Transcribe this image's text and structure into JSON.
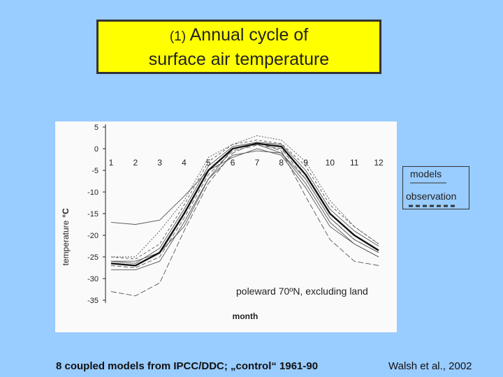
{
  "title": {
    "prefix": "(1)",
    "line1": "Annual cycle of",
    "line2": "surface air temperature"
  },
  "legend": {
    "models": "models",
    "observation": "observation"
  },
  "footer": {
    "left": "8 coupled models from IPCC/DDC; „control“ 1961-90",
    "right": "Walsh et al., 2002"
  },
  "chart_data": {
    "type": "line",
    "xlabel": "month",
    "ylabel": "temperature",
    "yunit": "°C",
    "annotation": "poleward 70ºN, excluding land",
    "x": [
      1,
      2,
      3,
      4,
      5,
      6,
      7,
      8,
      9,
      10,
      11,
      12
    ],
    "x_tick_labels": [
      "1",
      "2",
      "3",
      "4",
      "5",
      "6",
      "7",
      "8",
      "9",
      "10",
      "11",
      "12"
    ],
    "y_ticks": [
      5,
      0,
      -5,
      -10,
      -15,
      -20,
      -25,
      -30,
      -35
    ],
    "ylim": [
      -35,
      5
    ],
    "grid": false,
    "series": [
      {
        "kind": "observation",
        "values": [
          -26.5,
          -27,
          -24,
          -15,
          -5,
          0,
          1.2,
          0.5,
          -6,
          -15,
          -20,
          -23.5
        ]
      },
      {
        "kind": "model",
        "values": [
          -27,
          -27.5,
          -25,
          -16,
          -6,
          -0.5,
          0.8,
          0,
          -7,
          -16,
          -21,
          -24
        ]
      },
      {
        "kind": "model",
        "values": [
          -26,
          -26.5,
          -23,
          -14,
          -4,
          0.5,
          1.5,
          1,
          -5,
          -14,
          -19,
          -22.5
        ]
      },
      {
        "kind": "model",
        "values": [
          -25,
          -25.5,
          -22,
          -13,
          -3,
          1,
          2,
          1.2,
          -4,
          -13,
          -18,
          -22
        ]
      },
      {
        "kind": "model",
        "values": [
          -28,
          -28,
          -26,
          -17,
          -7,
          -1.5,
          -0.5,
          -1,
          -8,
          -17,
          -22,
          -25
        ]
      },
      {
        "kind": "model",
        "values": [
          -17,
          -17.5,
          -16.5,
          -11,
          -5,
          -2,
          0,
          -1.5,
          -9,
          -18,
          -22,
          -25
        ]
      },
      {
        "kind": "model",
        "values": [
          -25,
          -25,
          -19,
          -12,
          -2,
          1,
          3,
          2,
          -3,
          -12,
          -18,
          -22
        ]
      },
      {
        "kind": "model",
        "values": [
          -33,
          -34,
          -31,
          -19,
          -8,
          -1,
          1.5,
          -0.5,
          -11,
          -21,
          -26,
          -27
        ]
      },
      {
        "kind": "model",
        "values": [
          -26,
          -26,
          -24,
          -18,
          -7,
          0,
          1,
          -1,
          -7,
          -16,
          -21,
          -24
        ]
      }
    ]
  }
}
